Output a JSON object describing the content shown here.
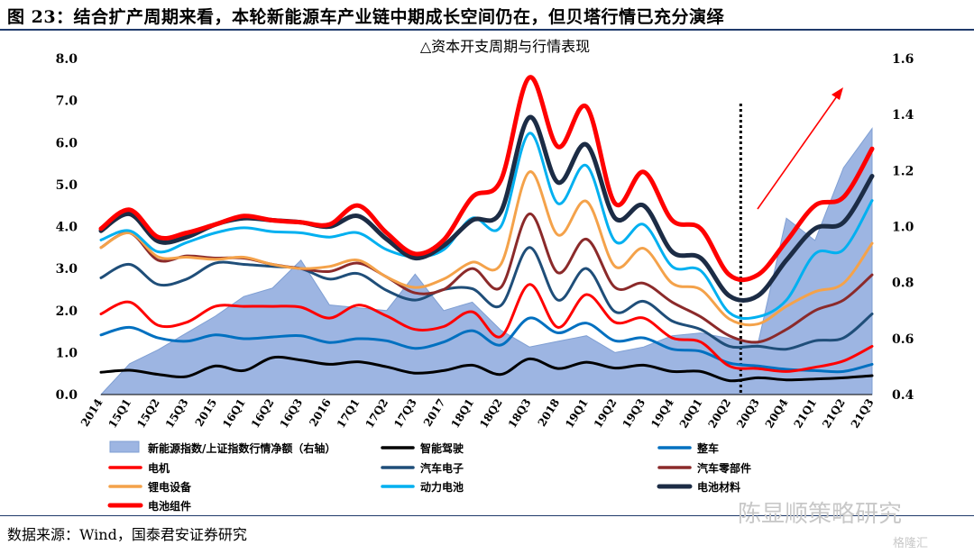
{
  "figure": {
    "title": "图 23：结合扩产周期来看，本轮新能源车产业链中期成长空间仍在，但贝塔行情已充分演绎",
    "source": "数据来源：Wind，国泰君安证券研究",
    "watermark": "陈显顺策略研究",
    "watermark_sub": "格隆汇"
  },
  "chart_data": {
    "type": "line",
    "title": "△资本开支周期与行情表现",
    "categories": [
      "2014",
      "15Q1",
      "15Q2",
      "15Q3",
      "2015",
      "16Q1",
      "16Q2",
      "16Q3",
      "2016",
      "17Q1",
      "17Q2",
      "17Q3",
      "2017",
      "18Q1",
      "18Q2",
      "18Q3",
      "2018",
      "19Q1",
      "19Q2",
      "19Q3",
      "19Q4",
      "20Q1",
      "20Q2",
      "20Q3",
      "20Q4",
      "21Q1",
      "21Q2",
      "21Q3"
    ],
    "ylim": [
      0,
      8
    ],
    "y2lim": [
      0.4,
      1.6
    ],
    "yticks": [
      "0.0",
      "1.0",
      "2.0",
      "3.0",
      "4.0",
      "5.0",
      "6.0",
      "7.0",
      "8.0"
    ],
    "y2ticks": [
      "0.4",
      "0.6",
      "0.8",
      "1.0",
      "1.2",
      "1.4",
      "1.6"
    ],
    "vline_category_index": 22.4,
    "series": [
      {
        "name": "新能源指数/上证指数行情净额（右轴）",
        "kind": "area",
        "axis": "right",
        "color": "#7f9fd3",
        "values": [
          0.4,
          0.51,
          0.56,
          0.62,
          0.68,
          0.75,
          0.78,
          0.88,
          0.72,
          0.71,
          0.7,
          0.83,
          0.7,
          0.73,
          0.63,
          0.57,
          0.59,
          0.61,
          0.55,
          0.57,
          0.61,
          0.62,
          0.6,
          0.58,
          1.03,
          0.95,
          1.21,
          1.35
        ]
      },
      {
        "name": "智能驾驶",
        "color": "#000000",
        "values": [
          0.53,
          0.58,
          0.48,
          0.43,
          0.68,
          0.57,
          0.88,
          0.82,
          0.72,
          0.78,
          0.66,
          0.51,
          0.57,
          0.7,
          0.48,
          0.85,
          0.62,
          0.77,
          0.63,
          0.7,
          0.55,
          0.55,
          0.33,
          0.4,
          0.35,
          0.37,
          0.4,
          0.45
        ]
      },
      {
        "name": "整车",
        "color": "#0070c0",
        "values": [
          1.42,
          1.6,
          1.35,
          1.27,
          1.42,
          1.33,
          1.37,
          1.4,
          1.24,
          1.33,
          1.28,
          1.1,
          1.25,
          1.52,
          1.18,
          1.82,
          1.47,
          1.7,
          1.28,
          1.35,
          1.08,
          1.03,
          0.75,
          0.68,
          0.6,
          0.57,
          0.55,
          0.72
        ]
      },
      {
        "name": "电机",
        "color": "#ff0000",
        "values": [
          1.92,
          2.2,
          1.65,
          1.72,
          2.1,
          2.1,
          2.1,
          2.08,
          1.82,
          2.13,
          1.87,
          1.55,
          1.62,
          1.97,
          1.38,
          2.62,
          1.6,
          2.38,
          1.72,
          1.82,
          1.35,
          1.25,
          0.68,
          0.62,
          0.55,
          0.65,
          0.8,
          1.15
        ]
      },
      {
        "name": "汽车电子",
        "color": "#1f4e79",
        "values": [
          2.78,
          3.1,
          2.62,
          2.75,
          3.13,
          3.1,
          3.05,
          3.0,
          2.75,
          2.88,
          2.48,
          2.25,
          2.5,
          2.52,
          2.12,
          3.5,
          2.25,
          3.0,
          1.97,
          2.22,
          1.75,
          1.55,
          1.15,
          1.15,
          1.08,
          1.28,
          1.35,
          1.92
        ]
      },
      {
        "name": "汽车零部件",
        "color": "#8b2a2a",
        "values": [
          3.5,
          3.85,
          3.2,
          3.3,
          3.25,
          3.25,
          3.1,
          3.0,
          2.93,
          3.13,
          2.8,
          2.42,
          2.5,
          3.0,
          2.55,
          4.3,
          2.9,
          3.7,
          2.55,
          2.65,
          2.2,
          1.85,
          1.4,
          1.25,
          1.55,
          2.0,
          2.25,
          2.85
        ]
      },
      {
        "name": "锂电设备",
        "color": "#f4a24a",
        "values": [
          3.5,
          3.85,
          3.28,
          3.27,
          3.22,
          3.27,
          3.1,
          3.0,
          3.05,
          3.2,
          2.8,
          2.55,
          2.75,
          3.15,
          3.1,
          5.3,
          3.8,
          4.6,
          3.05,
          3.48,
          2.65,
          2.5,
          1.8,
          1.68,
          2.1,
          2.45,
          2.65,
          3.6
        ]
      },
      {
        "name": "动力电池",
        "color": "#00b0f0",
        "values": [
          3.68,
          3.9,
          3.4,
          3.62,
          3.85,
          3.97,
          3.88,
          3.85,
          3.75,
          3.85,
          3.45,
          3.28,
          3.45,
          4.2,
          4.0,
          6.22,
          4.55,
          5.45,
          3.65,
          4.05,
          3.05,
          2.95,
          1.95,
          1.85,
          2.25,
          3.35,
          3.45,
          4.62
        ]
      },
      {
        "name": "电池材料",
        "color": "#1c2c45",
        "values": [
          3.9,
          4.3,
          3.65,
          3.75,
          4.05,
          4.2,
          4.15,
          4.1,
          4.0,
          4.25,
          3.7,
          3.25,
          3.55,
          4.15,
          4.35,
          6.6,
          5.05,
          5.95,
          4.2,
          4.5,
          3.4,
          3.25,
          2.35,
          2.35,
          3.2,
          3.95,
          4.1,
          5.2
        ]
      },
      {
        "name": "电池组件",
        "color": "#ff0000",
        "values": [
          3.95,
          4.4,
          3.75,
          3.85,
          4.05,
          4.25,
          4.15,
          4.1,
          4.05,
          4.5,
          3.85,
          3.35,
          3.68,
          4.7,
          5.1,
          7.55,
          5.9,
          6.85,
          4.55,
          5.3,
          4.15,
          3.95,
          2.85,
          2.85,
          3.65,
          4.5,
          4.7,
          5.85
        ]
      }
    ]
  }
}
